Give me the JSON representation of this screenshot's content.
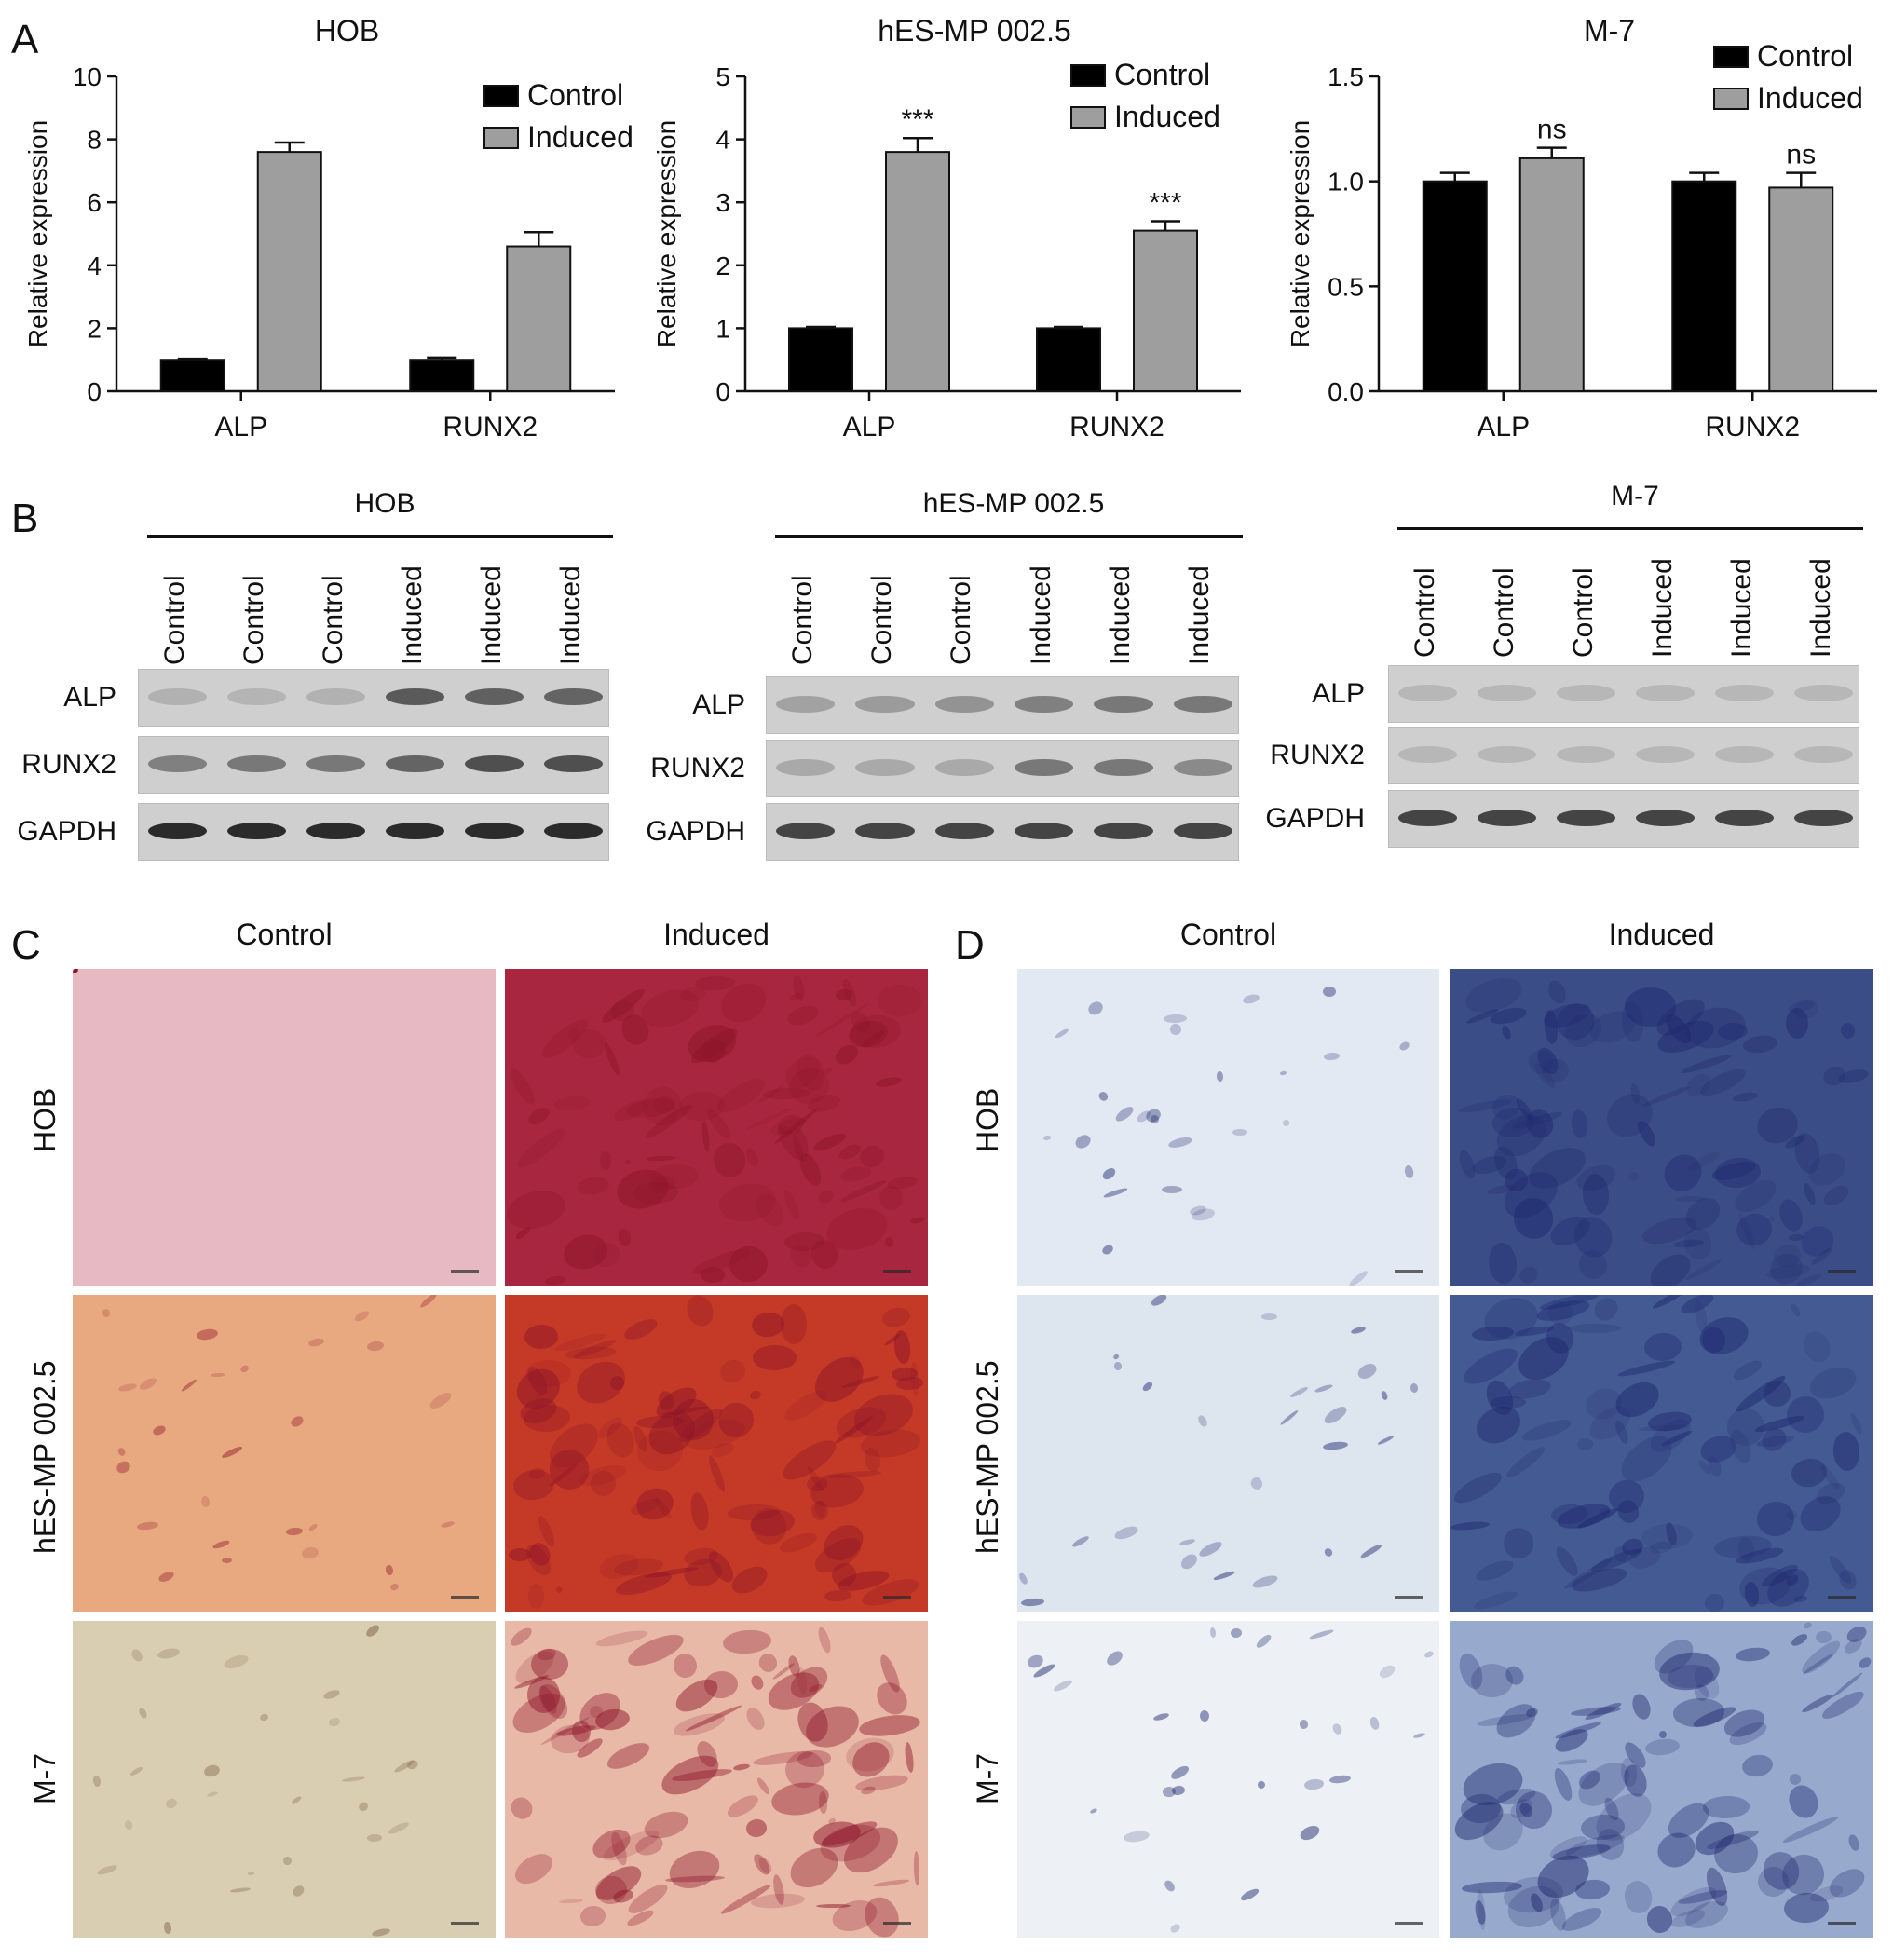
{
  "panels": {
    "a": "A",
    "b": "B",
    "c": "C",
    "d": "D"
  },
  "chart_data": [
    {
      "type": "bar",
      "title": "HOB",
      "ylabel": "Relative expression",
      "categories": [
        "ALP",
        "RUNX2"
      ],
      "ylim": [
        0,
        10
      ],
      "yticks": [
        "0",
        "2",
        "4",
        "6",
        "8",
        "10"
      ],
      "series": [
        {
          "name": "Control",
          "values": [
            1.0,
            1.0
          ],
          "errors": [
            0.03,
            0.07
          ]
        },
        {
          "name": "Induced",
          "values": [
            7.6,
            4.6
          ],
          "errors": [
            0.3,
            0.45
          ]
        }
      ],
      "annotations": [
        "",
        ""
      ],
      "legend": "top-right"
    },
    {
      "type": "bar",
      "title": "hES-MP 002.5",
      "ylabel": "Relative expression",
      "categories": [
        "ALP",
        "RUNX2"
      ],
      "ylim": [
        0,
        5
      ],
      "yticks": [
        "0",
        "1",
        "2",
        "3",
        "4",
        "5"
      ],
      "series": [
        {
          "name": "Control",
          "values": [
            1.0,
            1.0
          ],
          "errors": [
            0.02,
            0.02
          ]
        },
        {
          "name": "Induced",
          "values": [
            3.8,
            2.55
          ],
          "errors": [
            0.22,
            0.15
          ]
        }
      ],
      "annotations": [
        "***",
        "***"
      ],
      "legend": "top-right"
    },
    {
      "type": "bar",
      "title": "M-7",
      "ylabel": "Relative expression",
      "categories": [
        "ALP",
        "RUNX2"
      ],
      "ylim": [
        0,
        1.5
      ],
      "yticks": [
        "0.0",
        "0.5",
        "1.0",
        "1.5"
      ],
      "series": [
        {
          "name": "Control",
          "values": [
            1.0,
            1.0
          ],
          "errors": [
            0.04,
            0.04
          ]
        },
        {
          "name": "Induced",
          "values": [
            1.11,
            0.97
          ],
          "errors": [
            0.05,
            0.07
          ]
        }
      ],
      "annotations": [
        "ns",
        "ns"
      ],
      "legend": "top-right"
    }
  ],
  "blots": [
    {
      "title": "HOB",
      "lanes": [
        "Control",
        "Control",
        "Control",
        "Induced",
        "Induced",
        "Induced"
      ],
      "proteins": [
        "ALP",
        "RUNX2",
        "GAPDH"
      ],
      "intensity": [
        [
          0.25,
          0.22,
          0.25,
          0.75,
          0.72,
          0.7
        ],
        [
          0.55,
          0.6,
          0.6,
          0.7,
          0.8,
          0.8
        ],
        [
          0.95,
          0.95,
          0.95,
          0.95,
          0.95,
          0.95
        ]
      ]
    },
    {
      "title": "hES-MP 002.5",
      "lanes": [
        "Control",
        "Control",
        "Control",
        "Induced",
        "Induced",
        "Induced"
      ],
      "proteins": [
        "ALP",
        "RUNX2",
        "GAPDH"
      ],
      "intensity": [
        [
          0.35,
          0.4,
          0.45,
          0.55,
          0.6,
          0.6
        ],
        [
          0.3,
          0.3,
          0.3,
          0.6,
          0.6,
          0.5
        ],
        [
          0.85,
          0.85,
          0.85,
          0.85,
          0.85,
          0.85
        ]
      ]
    },
    {
      "title": "M-7",
      "lanes": [
        "Control",
        "Control",
        "Control",
        "Induced",
        "Induced",
        "Induced"
      ],
      "proteins": [
        "ALP",
        "RUNX2",
        "GAPDH"
      ],
      "intensity": [
        [
          0.2,
          0.2,
          0.2,
          0.2,
          0.2,
          0.2
        ],
        [
          0.2,
          0.2,
          0.2,
          0.2,
          0.2,
          0.2
        ],
        [
          0.85,
          0.85,
          0.85,
          0.85,
          0.85,
          0.85
        ]
      ]
    }
  ],
  "stain_c": {
    "columns": [
      "Control",
      "Induced"
    ],
    "rows": [
      "HOB",
      "hES-MP 002.5",
      "M-7"
    ],
    "colors": [
      [
        "#e7b9c3",
        "#a8263f"
      ],
      [
        "#e8a880",
        "#c53a26"
      ],
      [
        "#d9cdb2",
        "#e9b9a8"
      ]
    ]
  },
  "stain_d": {
    "columns": [
      "Control",
      "Induced"
    ],
    "rows": [
      "HOB",
      "hES-MP 002.5",
      "M-7"
    ],
    "colors": [
      [
        "#e3e9f2",
        "#3b4d86"
      ],
      [
        "#dde5ef",
        "#445a92"
      ],
      [
        "#edf1f5",
        "#97aacd"
      ]
    ]
  }
}
